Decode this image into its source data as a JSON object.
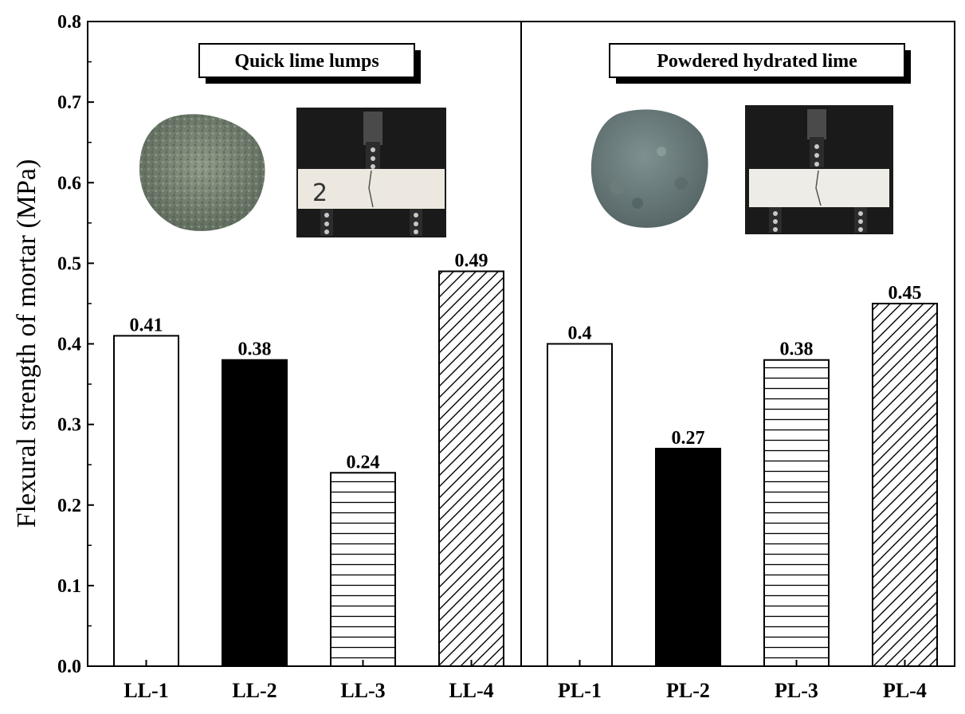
{
  "chart_data": {
    "type": "bar",
    "ylabel": "Flexural strength of mortar (MPa)",
    "ylim": [
      0.0,
      0.8
    ],
    "yticks": [
      "0.0",
      "0.1",
      "0.2",
      "0.3",
      "0.4",
      "0.5",
      "0.6",
      "0.7",
      "0.8"
    ],
    "groups": [
      {
        "title": "Quick lime lumps",
        "bars": [
          {
            "label": "LL-1",
            "value": 0.41,
            "value_label": "0.41",
            "pattern": "white"
          },
          {
            "label": "LL-2",
            "value": 0.38,
            "value_label": "0.38",
            "pattern": "black"
          },
          {
            "label": "LL-3",
            "value": 0.24,
            "value_label": "0.24",
            "pattern": "horizontal"
          },
          {
            "label": "LL-4",
            "value": 0.49,
            "value_label": "0.49",
            "pattern": "diagonal"
          }
        ]
      },
      {
        "title": "Powdered hydrated lime",
        "bars": [
          {
            "label": "PL-1",
            "value": 0.4,
            "value_label": "0.4",
            "pattern": "white"
          },
          {
            "label": "PL-2",
            "value": 0.27,
            "value_label": "0.27",
            "pattern": "black"
          },
          {
            "label": "PL-3",
            "value": 0.38,
            "value_label": "0.38",
            "pattern": "horizontal"
          },
          {
            "label": "PL-4",
            "value": 0.45,
            "value_label": "0.45",
            "pattern": "diagonal"
          }
        ]
      }
    ]
  }
}
